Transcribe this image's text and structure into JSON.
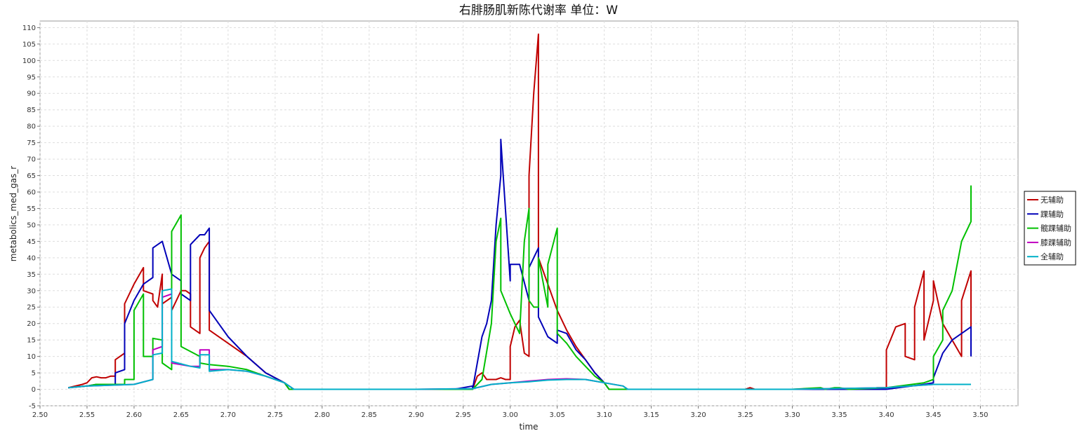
{
  "chart_data": {
    "type": "line",
    "title": "右腓肠肌新陈代谢率 单位：W",
    "xlabel": "time",
    "ylabel": "metabolics_med_gas_r",
    "xlim": [
      2.5,
      3.54
    ],
    "ylim": [
      -5,
      112
    ],
    "xticks": [
      2.5,
      2.55,
      2.6,
      2.65,
      2.7,
      2.75,
      2.8,
      2.85,
      2.9,
      2.95,
      3.0,
      3.05,
      3.1,
      3.15,
      3.2,
      3.25,
      3.3,
      3.35,
      3.4,
      3.45,
      3.5
    ],
    "xtick_labels": [
      "2.50",
      "2.55",
      "2.60",
      "2.65",
      "2.70",
      "2.75",
      "2.80",
      "2.85",
      "2.90",
      "2.95",
      "3.00",
      "3.05",
      "3.10",
      "3.15",
      "3.20",
      "3.25",
      "3.30",
      "3.35",
      "3.40",
      "3.45",
      "3.50"
    ],
    "yticks": [
      -5,
      0,
      5,
      10,
      15,
      20,
      25,
      30,
      35,
      40,
      45,
      50,
      55,
      60,
      65,
      70,
      75,
      80,
      85,
      90,
      95,
      100,
      105,
      110
    ],
    "ytick_labels": [
      "-5",
      "0",
      "5",
      "10",
      "15",
      "20",
      "25",
      "30",
      "35",
      "40",
      "45",
      "50",
      "55",
      "60",
      "65",
      "70",
      "75",
      "80",
      "85",
      "90",
      "95",
      "100",
      "105",
      "110"
    ],
    "grid": true,
    "legend_position": "right",
    "series": [
      {
        "name": "无辅助",
        "color": "#c00000",
        "x": [
          2.53,
          2.545,
          2.55,
          2.555,
          2.56,
          2.565,
          2.57,
          2.575,
          2.58,
          2.58,
          2.59,
          2.59,
          2.6,
          2.61,
          2.61,
          2.62,
          2.62,
          2.625,
          2.63,
          2.63,
          2.64,
          2.64,
          2.65,
          2.655,
          2.66,
          2.66,
          2.67,
          2.67,
          2.675,
          2.68,
          2.68,
          2.7,
          2.72,
          2.74,
          2.76,
          2.765,
          2.8,
          2.9,
          2.96,
          2.965,
          2.97,
          2.975,
          2.98,
          2.985,
          2.99,
          2.995,
          3.0,
          3.0,
          3.005,
          3.01,
          3.015,
          3.02,
          3.02,
          3.025,
          3.03,
          3.03,
          3.04,
          3.05,
          3.06,
          3.07,
          3.08,
          3.09,
          3.1,
          3.105,
          3.15,
          3.25,
          3.255,
          3.26,
          3.3,
          3.38,
          3.39,
          3.4,
          3.4,
          3.41,
          3.42,
          3.42,
          3.43,
          3.43,
          3.44,
          3.44,
          3.45,
          3.45,
          3.46,
          3.47,
          3.48,
          3.48,
          3.49,
          3.49
        ],
        "y": [
          0.5,
          1.5,
          2,
          3.5,
          3.8,
          3.5,
          3.5,
          4,
          4,
          9,
          11,
          26,
          32,
          37,
          30,
          29,
          27,
          25,
          35,
          26,
          28,
          24,
          30,
          30,
          29,
          19,
          17,
          40,
          43,
          45,
          18,
          14,
          10,
          5,
          2,
          0,
          0,
          0,
          0,
          4,
          5,
          3,
          3,
          3,
          3.5,
          3,
          3,
          13,
          19,
          21,
          11,
          10,
          65,
          90,
          108,
          40,
          32,
          24,
          18,
          13,
          9,
          5,
          2,
          0,
          0,
          0,
          0.5,
          0,
          0,
          0,
          0.5,
          0.5,
          12,
          19,
          20,
          10,
          9,
          25,
          36,
          15,
          27,
          33,
          20,
          15,
          10,
          27,
          36,
          18
        ]
      },
      {
        "name": "踝辅助",
        "color": "#0000b8",
        "x": [
          2.53,
          2.55,
          2.56,
          2.58,
          2.58,
          2.59,
          2.59,
          2.6,
          2.61,
          2.62,
          2.62,
          2.63,
          2.64,
          2.65,
          2.65,
          2.66,
          2.66,
          2.67,
          2.675,
          2.68,
          2.68,
          2.7,
          2.72,
          2.74,
          2.76,
          2.765,
          2.8,
          2.9,
          2.94,
          2.95,
          2.96,
          2.96,
          2.97,
          2.975,
          2.98,
          2.985,
          2.99,
          2.99,
          3.0,
          3.0,
          3.01,
          3.02,
          3.02,
          3.025,
          3.03,
          3.03,
          3.04,
          3.05,
          3.05,
          3.06,
          3.07,
          3.08,
          3.09,
          3.1,
          3.105,
          3.15,
          3.3,
          3.4,
          3.44,
          3.45,
          3.45,
          3.46,
          3.47,
          3.48,
          3.49,
          3.49,
          3.49
        ],
        "y": [
          0.5,
          1,
          1.5,
          1.5,
          5,
          6,
          20,
          27,
          32,
          34,
          43,
          45,
          35,
          33,
          29,
          27,
          44,
          47,
          47,
          49,
          24,
          16,
          10,
          5,
          2,
          0,
          0,
          0,
          0,
          0.5,
          1,
          0,
          16,
          20,
          27,
          50,
          65,
          76,
          33,
          38,
          38,
          27,
          37,
          40,
          43,
          22,
          16,
          14,
          18,
          17,
          12,
          9,
          5,
          2,
          0,
          0,
          0,
          0,
          1.5,
          2,
          3.5,
          11,
          15,
          17,
          19,
          12,
          10
        ]
      },
      {
        "name": "髋踝辅助",
        "color": "#00c000",
        "x": [
          2.53,
          2.55,
          2.56,
          2.59,
          2.59,
          2.6,
          2.6,
          2.61,
          2.61,
          2.62,
          2.62,
          2.63,
          2.63,
          2.64,
          2.64,
          2.65,
          2.65,
          2.67,
          2.67,
          2.68,
          2.7,
          2.72,
          2.74,
          2.76,
          2.765,
          2.8,
          2.9,
          2.96,
          2.97,
          2.98,
          2.985,
          2.99,
          2.99,
          3.0,
          3.01,
          3.015,
          3.02,
          3.02,
          3.025,
          3.03,
          3.03,
          3.04,
          3.04,
          3.05,
          3.05,
          3.06,
          3.07,
          3.08,
          3.09,
          3.1,
          3.105,
          3.15,
          3.3,
          3.33,
          3.335,
          3.345,
          3.35,
          3.36,
          3.4,
          3.44,
          3.45,
          3.45,
          3.46,
          3.46,
          3.47,
          3.48,
          3.49,
          3.49
        ],
        "y": [
          0.5,
          1,
          1.5,
          1.5,
          3,
          3,
          24,
          29,
          10,
          10,
          15.5,
          15,
          8,
          6,
          48,
          53,
          13,
          10,
          8,
          7.5,
          7,
          6,
          4,
          2,
          0,
          0,
          0,
          0,
          3,
          20,
          45,
          52,
          30,
          23,
          17,
          45,
          55,
          27,
          25,
          25,
          40,
          25,
          38,
          49,
          17,
          14,
          10,
          7,
          4,
          2,
          0,
          0,
          0,
          0.5,
          0,
          0.5,
          0.5,
          0,
          0.5,
          2,
          3,
          10,
          15,
          24,
          30,
          45,
          51,
          62
        ]
      },
      {
        "name": "膝踝辅助",
        "color": "#c000c0",
        "x": [
          2.53,
          2.55,
          2.6,
          2.62,
          2.62,
          2.63,
          2.63,
          2.64,
          2.64,
          2.66,
          2.67,
          2.67,
          2.68,
          2.68,
          2.7,
          2.72,
          2.74,
          2.76,
          2.77,
          2.8,
          2.9,
          2.96,
          2.98,
          3.0,
          3.02,
          3.04,
          3.06,
          3.08,
          3.1,
          3.12,
          3.125,
          3.3,
          3.4,
          3.45,
          3.49
        ],
        "y": [
          0.5,
          1,
          1.5,
          3,
          12,
          13,
          28,
          29,
          8,
          7,
          7,
          12,
          12,
          6,
          6,
          5.5,
          4,
          2,
          0,
          0,
          0,
          0.2,
          1.5,
          2,
          2.5,
          3,
          3.2,
          3,
          2,
          1,
          0,
          0,
          0.5,
          1.5,
          1.5
        ]
      },
      {
        "name": "全辅助",
        "color": "#00b0c8",
        "x": [
          2.53,
          2.55,
          2.6,
          2.62,
          2.62,
          2.63,
          2.63,
          2.64,
          2.64,
          2.66,
          2.67,
          2.67,
          2.68,
          2.68,
          2.7,
          2.72,
          2.74,
          2.76,
          2.77,
          2.8,
          2.9,
          2.96,
          2.98,
          3.0,
          3.02,
          3.04,
          3.06,
          3.08,
          3.1,
          3.12,
          3.125,
          3.3,
          3.4,
          3.45,
          3.49
        ],
        "y": [
          0.5,
          1,
          1.5,
          3,
          10.5,
          11,
          30,
          30.5,
          8.5,
          7,
          6.5,
          10.5,
          10.5,
          5.5,
          6,
          5.5,
          4,
          2,
          0,
          0,
          0,
          0.2,
          1.5,
          2,
          2.3,
          2.8,
          3,
          3,
          2,
          1,
          0,
          0,
          0.5,
          1.5,
          1.5
        ]
      }
    ]
  }
}
